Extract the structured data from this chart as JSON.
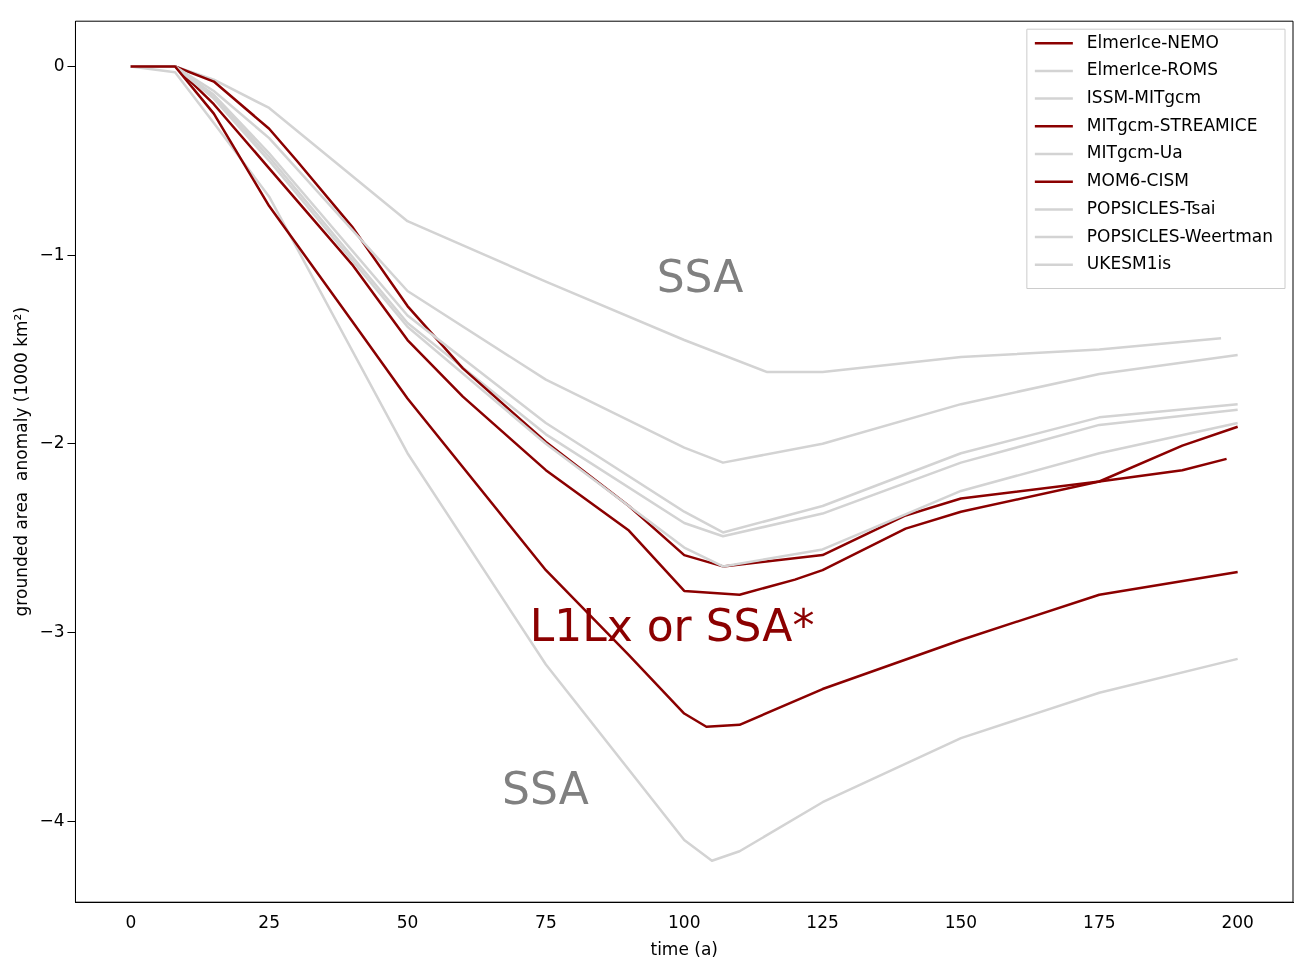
{
  "chart_data": {
    "type": "line",
    "xlabel": "time (a)",
    "ylabel": "grounded area  anomaly (1000 km²)",
    "xlim": [
      -10,
      210
    ],
    "ylim": [
      -4.43,
      0.24
    ],
    "xticks": [
      0,
      25,
      50,
      75,
      100,
      125,
      150,
      175,
      200
    ],
    "yticks": [
      0,
      -1,
      -2,
      -3,
      -4
    ],
    "grid": false,
    "legend": "top right",
    "marker": "none",
    "line_style": "solid",
    "annotations": [
      "SSA",
      "SSA",
      "L1Lx or SSA*"
    ],
    "series": [
      {
        "name": "ElmerIce-NEMO",
        "color": "#8b0000",
        "x": [
          0,
          8,
          15,
          25,
          40,
          50,
          75,
          90,
          100,
          104,
          110,
          125,
          150,
          175,
          200
        ],
        "values": [
          0,
          0,
          -0.25,
          -0.74,
          -1.35,
          -1.76,
          -2.67,
          -3.12,
          -3.43,
          -3.5,
          -3.49,
          -3.3,
          -3.04,
          -2.8,
          -2.68
        ]
      },
      {
        "name": "ElmerIce-ROMS",
        "color": "#d3d3d3",
        "x": [
          0,
          8,
          15,
          25,
          50,
          75,
          100,
          107,
          125,
          150,
          175,
          200
        ],
        "values": [
          0,
          0,
          -0.15,
          -0.46,
          -1.32,
          -1.89,
          -2.36,
          -2.47,
          -2.33,
          -2.05,
          -1.86,
          -1.79
        ]
      },
      {
        "name": "ISSM-MITgcm",
        "color": "#d3d3d3",
        "x": [
          0,
          8,
          15,
          25,
          50,
          75,
          100,
          107,
          125,
          150,
          175,
          200
        ],
        "values": [
          0,
          0,
          -0.17,
          -0.5,
          -1.38,
          -2.0,
          -2.55,
          -2.65,
          -2.56,
          -2.25,
          -2.05,
          -1.89
        ]
      },
      {
        "name": "MITgcm-STREAMICE",
        "color": "#8b0000",
        "x": [
          0,
          8,
          15,
          25,
          40,
          50,
          60,
          75,
          90,
          100,
          110,
          120,
          125,
          140,
          150,
          175,
          190,
          198
        ],
        "values": [
          0,
          0,
          -0.2,
          -0.54,
          -1.05,
          -1.45,
          -1.75,
          -2.14,
          -2.46,
          -2.78,
          -2.8,
          -2.72,
          -2.67,
          -2.45,
          -2.36,
          -2.2,
          -2.14,
          -2.08
        ]
      },
      {
        "name": "MITgcm-Ua",
        "color": "#d3d3d3",
        "x": [
          0,
          8,
          15,
          25,
          50,
          75,
          100,
          107,
          125,
          150,
          175,
          200
        ],
        "values": [
          0,
          0,
          -0.13,
          -0.38,
          -1.19,
          -1.66,
          -2.02,
          -2.1,
          -2.0,
          -1.79,
          -1.63,
          -1.53
        ]
      },
      {
        "name": "MOM6-CISM",
        "color": "#8b0000",
        "x": [
          0,
          8,
          15,
          25,
          30,
          40,
          50,
          60,
          75,
          90,
          100,
          107,
          125,
          140,
          150,
          175,
          190,
          200
        ],
        "values": [
          0,
          0,
          -0.08,
          -0.33,
          -0.5,
          -0.85,
          -1.27,
          -1.6,
          -1.99,
          -2.33,
          -2.59,
          -2.65,
          -2.59,
          -2.38,
          -2.29,
          -2.2,
          -2.01,
          -1.91
        ]
      },
      {
        "name": "POPSICLES-Tsai",
        "color": "#d3d3d3",
        "x": [
          0,
          8,
          15,
          25,
          50,
          75,
          100,
          107,
          125,
          150,
          175,
          200
        ],
        "values": [
          0,
          0,
          -0.16,
          -0.48,
          -1.36,
          -1.95,
          -2.42,
          -2.49,
          -2.37,
          -2.1,
          -1.9,
          -1.82
        ]
      },
      {
        "name": "POPSICLES-Weertman",
        "color": "#d3d3d3",
        "x": [
          0,
          8,
          15,
          25,
          50,
          75,
          100,
          115,
          125,
          150,
          175,
          197
        ],
        "values": [
          0,
          0,
          -0.07,
          -0.22,
          -0.82,
          -1.14,
          -1.45,
          -1.62,
          -1.62,
          -1.54,
          -1.5,
          -1.44
        ]
      },
      {
        "name": "UKESM1is",
        "color": "#d3d3d3",
        "x": [
          0,
          8,
          15,
          25,
          50,
          75,
          100,
          105,
          110,
          125,
          150,
          175,
          200
        ],
        "values": [
          0,
          -0.03,
          -0.3,
          -0.69,
          -2.05,
          -3.17,
          -4.1,
          -4.21,
          -4.16,
          -3.9,
          -3.56,
          -3.32,
          -3.14
        ]
      }
    ]
  }
}
